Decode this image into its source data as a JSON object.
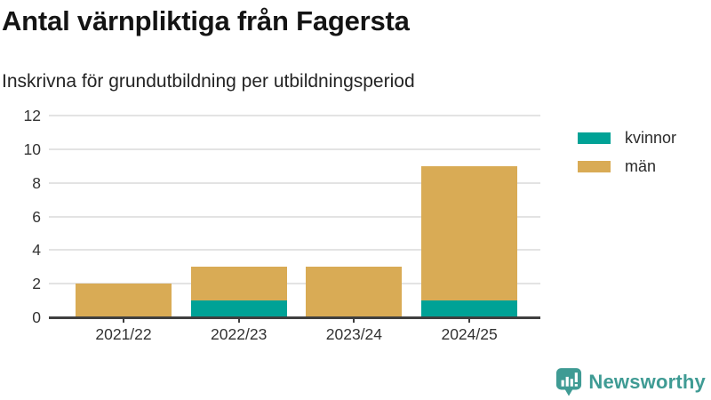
{
  "header": {
    "title": "Antal värnpliktiga från Fagersta",
    "subtitle": "Inskrivna för grundutbildning per utbildningsperiod"
  },
  "chart_data": {
    "type": "bar",
    "stacked": true,
    "title": "Antal värnpliktiga från Fagersta",
    "subtitle": "Inskrivna för grundutbildning per utbildningsperiod",
    "categories": [
      "2021/22",
      "2022/23",
      "2023/24",
      "2024/25"
    ],
    "series": [
      {
        "name": "kvinnor",
        "color": "#00a296",
        "values": [
          0,
          1,
          0,
          1
        ]
      },
      {
        "name": "män",
        "color": "#d9ab55",
        "values": [
          2,
          2,
          3,
          8
        ]
      }
    ],
    "totals": [
      2,
      3,
      3,
      9
    ],
    "xlabel": "",
    "ylabel": "",
    "ylim": [
      0,
      12
    ],
    "yticks": [
      0,
      2,
      4,
      6,
      8,
      10,
      12
    ],
    "grid": "horizontal",
    "legend_position": "right",
    "colors": {
      "gridline": "#e3e3e3",
      "axis": "#3f3f3f",
      "text": "#333333"
    }
  },
  "branding": {
    "logo_text": "Newsworthy",
    "logo_color": "#3f9b94",
    "logo_icon": "newsworthy-speech-bubble-bar-chart-icon"
  }
}
